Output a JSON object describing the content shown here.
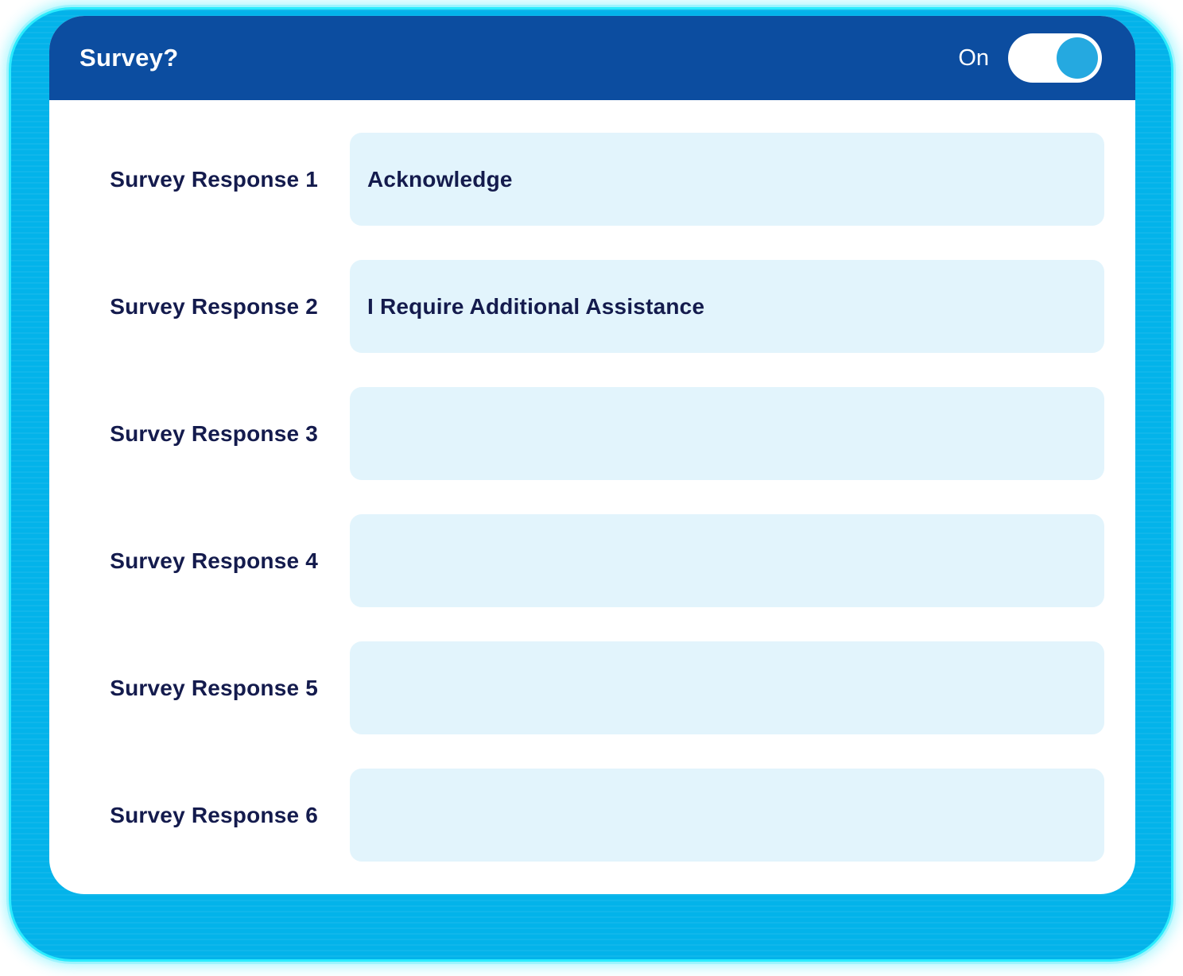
{
  "header": {
    "title": "Survey?",
    "toggle": {
      "label": "On",
      "state": "on"
    }
  },
  "form": {
    "rows": [
      {
        "label": "Survey Response 1",
        "value": "Acknowledge"
      },
      {
        "label": "Survey Response 2",
        "value": "I Require Additional Assistance"
      },
      {
        "label": "Survey Response 3",
        "value": ""
      },
      {
        "label": "Survey Response 4",
        "value": ""
      },
      {
        "label": "Survey Response 5",
        "value": ""
      },
      {
        "label": "Survey Response 6",
        "value": ""
      }
    ]
  },
  "colors": {
    "header_bar": "#0c4da0",
    "accent_cyan": "#03b3ea",
    "edge_glow": "#2bebfd",
    "toggle_knob": "#25a9e0",
    "field_bg": "#e2f4fc",
    "text_navy": "#141b4d",
    "card_bg": "#ffffff"
  }
}
